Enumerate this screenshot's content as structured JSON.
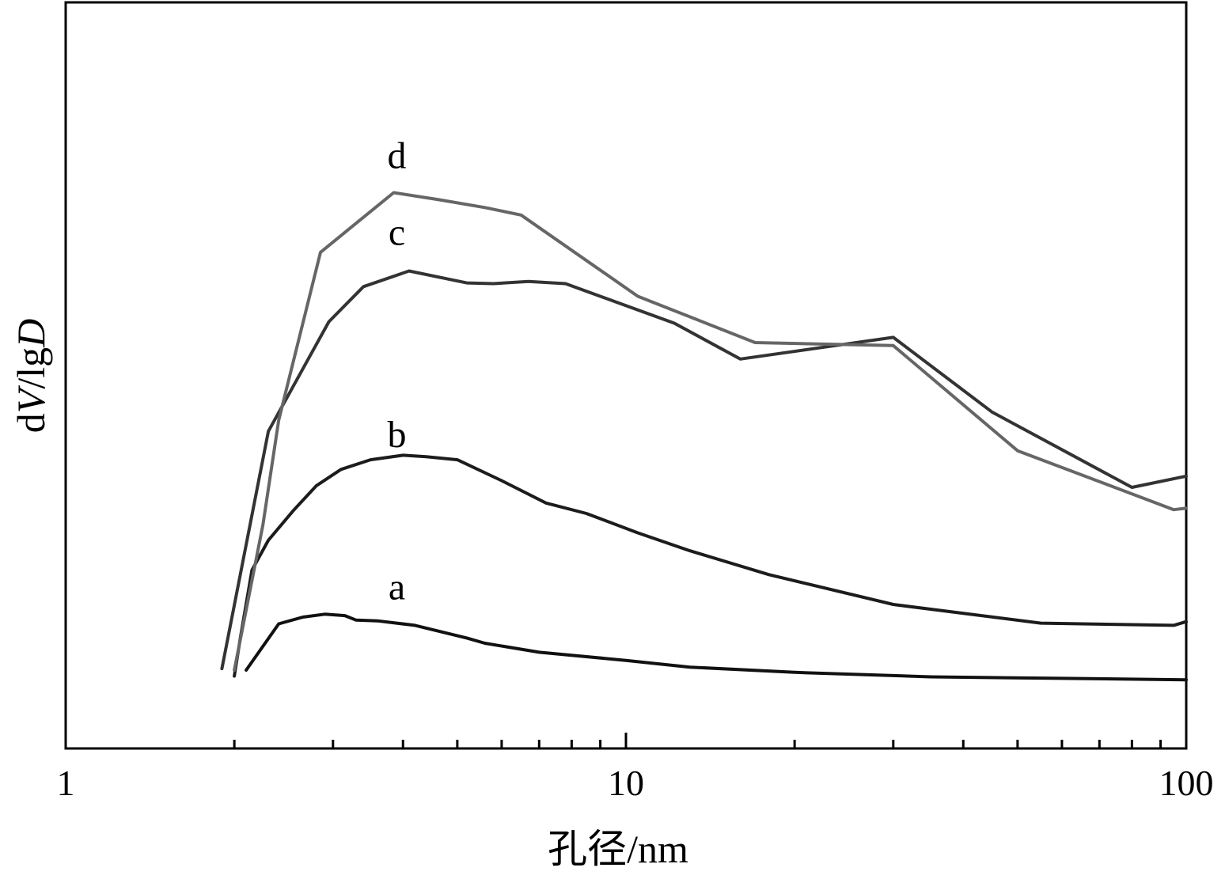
{
  "chart_data": {
    "type": "line",
    "xlabel": "孔径/nm",
    "ylabel_parts": [
      "d",
      "V",
      "/lg",
      "D"
    ],
    "xscale": "log",
    "xlim": [
      1,
      100
    ],
    "ylim": [
      0,
      100
    ],
    "yticks_shown": false,
    "xticks": [
      {
        "value": 1,
        "label": "1"
      },
      {
        "value": 10,
        "label": "10"
      },
      {
        "value": 100,
        "label": "100"
      }
    ],
    "minor_xticks": [
      2,
      3,
      4,
      5,
      6,
      7,
      8,
      9,
      20,
      30,
      40,
      50,
      60,
      70,
      80,
      90
    ],
    "grid": false,
    "legend": "none",
    "series": [
      {
        "name": "a",
        "color": "#111111",
        "label_at": [
          3.9,
          20
        ],
        "x": [
          2.1,
          2.4,
          2.65,
          2.9,
          3.15,
          3.3,
          3.6,
          4.2,
          5.2,
          5.6,
          7.0,
          10,
          13,
          20,
          35,
          60,
          100
        ],
        "y": [
          10.5,
          16.7,
          17.6,
          18.0,
          17.8,
          17.2,
          17.1,
          16.5,
          14.8,
          14.1,
          12.9,
          11.8,
          10.9,
          10.2,
          9.6,
          9.4,
          9.2
        ]
      },
      {
        "name": "b",
        "color": "#1c1c1c",
        "label_at": [
          3.9,
          40.4
        ],
        "x": [
          2.0,
          2.05,
          2.15,
          2.3,
          2.55,
          2.8,
          3.1,
          3.5,
          4.0,
          4.4,
          5.0,
          6.0,
          7.2,
          8.5,
          10.5,
          13,
          18,
          30,
          55,
          95,
          100
        ],
        "y": [
          9.7,
          14.8,
          23.9,
          27.9,
          31.9,
          35.2,
          37.4,
          38.7,
          39.3,
          39.1,
          38.7,
          35.9,
          32.9,
          31.5,
          28.9,
          26.5,
          23.3,
          19.3,
          16.8,
          16.5,
          17.0
        ]
      },
      {
        "name": "c",
        "color": "#333333",
        "label_at": [
          3.9,
          67.5
        ],
        "x": [
          1.9,
          2.3,
          2.95,
          3.4,
          4.1,
          4.9,
          5.2,
          5.8,
          6.7,
          7.8,
          12.2,
          16.0,
          30.0,
          45.0,
          80,
          100
        ],
        "y": [
          10.7,
          42.5,
          57.2,
          61.9,
          64.0,
          62.8,
          62.4,
          62.3,
          62.6,
          62.3,
          57.0,
          52.2,
          55.1,
          45.1,
          35.0,
          36.5
        ]
      },
      {
        "name": "d",
        "color": "#666666",
        "label_at": [
          3.9,
          77.8
        ],
        "x": [
          2.0,
          2.25,
          2.4,
          2.85,
          3.25,
          3.85,
          4.6,
          5.6,
          6.5,
          10.5,
          17.0,
          30.0,
          50.0,
          95,
          100
        ],
        "y": [
          10.5,
          30.0,
          44.0,
          66.5,
          70.0,
          74.5,
          73.6,
          72.5,
          71.5,
          60.6,
          54.4,
          54.0,
          39.9,
          32.0,
          32.2
        ]
      }
    ]
  }
}
